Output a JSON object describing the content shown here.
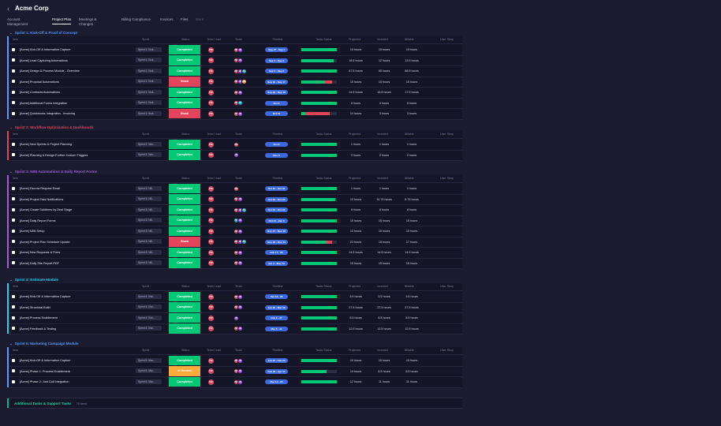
{
  "app": {
    "back_icon": "chevron-left-icon",
    "title": "Acme Corp"
  },
  "nav": [
    {
      "label": "Account Management",
      "label_lines": [
        "Account",
        "Management"
      ],
      "active": false
    },
    {
      "label": "Project Plan",
      "label_lines": [
        "Project Plan"
      ],
      "active": true
    },
    {
      "label": "Meetings & Changes",
      "label_lines": [
        "Meetings &",
        "Changes"
      ],
      "active": false
    },
    {
      "label": "Billing Compliance",
      "label_lines": [
        "Billing Compliance"
      ],
      "active": false
    },
    {
      "label": "Invoices",
      "label_lines": [
        "Invoices"
      ],
      "active": false
    },
    {
      "label": "Files",
      "label_lines": [
        "Files"
      ],
      "active": false
    },
    {
      "label": "More",
      "label_lines": [
        "More"
      ],
      "active": false
    }
  ],
  "columns": [
    "Item",
    "Sprint",
    "Status",
    "Team Lead",
    "Team",
    "Timeline",
    "Tasks Status",
    "Projected",
    "Invested",
    "Billable",
    "User Story"
  ],
  "colors": {
    "completed": "#00c875",
    "stuck": "#e2445c",
    "in_review": "#fdab3d",
    "timeline": "#3c68e0",
    "progress_done": "#00c875",
    "progress_stuck": "#e2445c"
  },
  "groups": [
    {
      "title": "Sprint 1: Kick-Off & Proof of Concept",
      "color": "#579bfc",
      "items": [
        {
          "name": "[Acme] Kick-Off & Information Capture",
          "sprint": "Sprint 1: Kick...",
          "status": "Completed",
          "lead": "PW",
          "team": [
            "PW",
            "JD"
          ],
          "timeline": "Aug 27 - Sep 1",
          "progress": [
            [
              1.0,
              "done"
            ]
          ],
          "projected": "15 hours",
          "invested": "19 hours",
          "billable": "19 hours"
        },
        {
          "name": "[Acme] Lead Capturing Automations",
          "sprint": "Sprint 1: Kick...",
          "status": "Completed",
          "lead": "PW",
          "team": [
            "PW",
            "JD"
          ],
          "timeline": "Sep 1 - Sep 3",
          "progress": [
            [
              0.92,
              "done"
            ]
          ],
          "projected": "18.5 hours",
          "invested": "12 hours",
          "billable": "13.5 hours"
        },
        {
          "name": "[Acme] Design & Process Module - Overview",
          "sprint": "Sprint 1: Kick...",
          "status": "Completed",
          "lead": "PW",
          "team": [
            "PW",
            "JD",
            "TK"
          ],
          "timeline": "Sep 1 - Sep 6",
          "progress": [
            [
              1.0,
              "done"
            ]
          ],
          "projected": "67.5 hours",
          "invested": "60 hours",
          "billable": "88.9 hours"
        },
        {
          "name": "[Acme] Proposal Automations",
          "sprint": "Sprint 1: Kick...",
          "status": "Stuck",
          "lead": "PW",
          "team": [
            "PW",
            "JD",
            "MR"
          ],
          "timeline": "Sep 16 - Sep 17",
          "progress": [
            [
              0.66,
              "done"
            ],
            [
              0.2,
              "stuck"
            ]
          ],
          "projected": "15 hours",
          "invested": "10 hours",
          "billable": "10 hours"
        },
        {
          "name": "[Acme] Contracts Automations",
          "sprint": "Sprint 1: Kick...",
          "status": "Completed",
          "lead": "PW",
          "team": [
            "PW",
            "JD"
          ],
          "timeline": "Sep 18 - Sep 19",
          "progress": [
            [
              1.0,
              "done"
            ]
          ],
          "projected": "14.5 hours",
          "invested": "16.5 hours",
          "billable": "17.5 hours"
        },
        {
          "name": "[Acme] Additional Forms Integration",
          "sprint": "Sprint 1: Kick...",
          "status": "Completed",
          "lead": "PW",
          "team": [
            "PW",
            "TK"
          ],
          "timeline": "Oct 6",
          "progress": [
            [
              1.0,
              "done"
            ]
          ],
          "projected": "6 hours",
          "invested": "4 hours",
          "billable": "6 hours"
        },
        {
          "name": "[Acme] Quickbooks Integration - Invoicing",
          "sprint": "Sprint 1: Kick...",
          "status": "Stuck",
          "lead": "PW",
          "team": [
            "PW",
            "JD"
          ],
          "timeline": "Oct 31",
          "progress": [
            [
              0.1,
              "done"
            ],
            [
              0.7,
              "stuck"
            ]
          ],
          "projected": "14 hours",
          "invested": "3 hours",
          "billable": "3 hours"
        }
      ]
    },
    {
      "title": "Sprint 2: Workflow Optimization & Dashboards",
      "color": "#e2445c",
      "items": [
        {
          "name": "[Acme] Next Sprints & Project Planning",
          "sprint": "Sprint 2: Wor...",
          "status": "Completed",
          "lead": "PW",
          "team": [
            "PW"
          ],
          "timeline": "Oct 8",
          "progress": [
            [
              1.0,
              "done"
            ]
          ],
          "projected": "1 hours",
          "invested": "1 hours",
          "billable": "1 hours"
        },
        {
          "name": "[Acme] Planning & Design Further Custom Triggers",
          "sprint": "Sprint 2: Wor...",
          "status": "Completed",
          "lead": "PW",
          "team": [
            "JD"
          ],
          "timeline": "Nov 5",
          "progress": [
            [
              1.0,
              "done"
            ]
          ],
          "projected": "2 hours",
          "invested": "2 hours",
          "billable": "2 hours"
        }
      ]
    },
    {
      "title": "Sprint 3: N8N Automations & Daily Report Forms",
      "color": "#a25ddc",
      "items": [
        {
          "name": "[Acme] Escrow Request Email",
          "sprint": "Sprint 3: N8...",
          "status": "Completed",
          "lead": "PW",
          "team": [
            "PW"
          ],
          "timeline": "Oct 15 - Oct 31",
          "progress": [
            [
              1.0,
              "done"
            ]
          ],
          "projected": "1 hours",
          "invested": "1 hours",
          "billable": "1 hours"
        },
        {
          "name": "[Acme] Project Task Notifications",
          "sprint": "Sprint 3: N8...",
          "status": "Completed",
          "lead": "PW",
          "team": [
            "PW",
            "JD"
          ],
          "timeline": "Oct 16 - Oct 24",
          "progress": [
            [
              0.96,
              "done"
            ]
          ],
          "projected": "10 hours",
          "invested": "10.75 hours",
          "billable": "8.75 hours"
        },
        {
          "name": "[Acme] Create Subitems by Deal Stage",
          "sprint": "Sprint 3: N8...",
          "status": "Completed",
          "lead": "PW",
          "team": [
            "PW",
            "JD",
            "TK"
          ],
          "timeline": "Oct 22 - Oct 23",
          "progress": [
            [
              1.0,
              "done"
            ]
          ],
          "projected": "8 hours",
          "invested": "8 hours",
          "billable": "8 hours"
        },
        {
          "name": "[Acme] Daily Report Forms",
          "sprint": "Sprint 3: N8...",
          "status": "Completed",
          "lead": "PW",
          "team": [
            "TK",
            "JD"
          ],
          "timeline": "Oct 24 - Jan 8",
          "progress": [
            [
              1.0,
              "done"
            ]
          ],
          "projected": "15 hours",
          "invested": "15 hours",
          "billable": "15 hours"
        },
        {
          "name": "[Acme] N8N Setup",
          "sprint": "Sprint 3: N8...",
          "status": "Completed",
          "lead": "PW",
          "team": [
            "PW",
            "JD"
          ],
          "timeline": "Nov 17 - Nov 20",
          "progress": [
            [
              1.0,
              "done"
            ]
          ],
          "projected": "10 hours",
          "invested": "10 hours",
          "billable": "10 hours"
        },
        {
          "name": "[Acme] Project Plan Schedule Update",
          "sprint": "Sprint 3: N8...",
          "status": "Stuck",
          "lead": "PW",
          "team": [
            "PW",
            "JD",
            "TK"
          ],
          "timeline": "Nov 20 - Dec 24",
          "progress": [
            [
              0.72,
              "done"
            ],
            [
              0.14,
              "stuck"
            ]
          ],
          "projected": "23 hours",
          "invested": "15 hours",
          "billable": "17 hours"
        },
        {
          "name": "[Acme] New Requests & Fixes",
          "sprint": "Sprint 3: N8...",
          "status": "Completed",
          "lead": "PW",
          "team": [
            "PW",
            "JD"
          ],
          "timeline": "Feb 17 - 25",
          "progress": [
            [
              1.0,
              "done"
            ]
          ],
          "projected": "14.5 hours",
          "invested": "14.5 hours",
          "billable": "14.5 hours"
        },
        {
          "name": "[Acme] Daily Site Report PDF",
          "sprint": "Sprint 3: N8...",
          "status": "Completed",
          "lead": "PW",
          "team": [
            "PW",
            "JD"
          ],
          "timeline": "Apr 2 - May 12",
          "progress": [
            [
              1.0,
              "done"
            ]
          ],
          "projected": "15 hours",
          "invested": "15 hours",
          "billable": "15 hours"
        }
      ]
    },
    {
      "title": "Sprint 4: Estimate Module",
      "color": "#22d3ee",
      "items": [
        {
          "name": "[Acme] Kick-Off & Information Capture",
          "sprint": "Sprint 4: Esti...",
          "status": "Completed",
          "lead": "PW",
          "team": [
            "PW",
            "JD"
          ],
          "timeline": "Jan 16 - 25",
          "progress": [
            [
              1.0,
              "done"
            ]
          ],
          "projected": "3.5 hours",
          "invested": "3.5 hours",
          "billable": "3.5 hours"
        },
        {
          "name": "[Acme] Structural Build",
          "sprint": "Sprint 4: Esti...",
          "status": "Completed",
          "lead": "PW",
          "team": [
            "PW",
            "JD"
          ],
          "timeline": "Jan 30 - Mar 19",
          "progress": [
            [
              1.0,
              "done"
            ]
          ],
          "projected": "27.5 hours",
          "invested": "27.5 hours",
          "billable": "27.5 hours"
        },
        {
          "name": "[Acme] Process Enablement",
          "sprint": "Sprint 4: Esti...",
          "status": "Completed",
          "lead": "PW",
          "team": [
            "JD"
          ],
          "timeline": "Feb 2 - 27",
          "progress": [
            [
              1.0,
              "done"
            ]
          ],
          "projected": "8.5 hours",
          "invested": "8.5 hours",
          "billable": "8.5 hours"
        },
        {
          "name": "[Acme] Feedback & Testing",
          "sprint": "Sprint 4: Esti...",
          "status": "Completed",
          "lead": "PW",
          "team": [
            "PW",
            "JD"
          ],
          "timeline": "Mar 5 - 11",
          "progress": [
            [
              1.0,
              "done"
            ]
          ],
          "projected": "12.5 hours",
          "invested": "12.5 hours",
          "billable": "12.5 hours"
        }
      ]
    },
    {
      "title": "Sprint 5: Marketing Campaign Module",
      "color": "#579bfc",
      "items": [
        {
          "name": "[Acme] Kick-Off & Information Capture",
          "sprint": "Sprint 5: Mar...",
          "status": "Completed",
          "lead": "PW",
          "team": [
            "PW",
            "JD"
          ],
          "timeline": "Jan 20 - Feb 26",
          "progress": [
            [
              1.0,
              "done"
            ]
          ],
          "projected": "10 hours",
          "invested": "10 hours",
          "billable": "10 hours"
        },
        {
          "name": "[Acme] Phase 1: Process Enablement",
          "sprint": "Sprint 5: Mar...",
          "status": "In Review",
          "lead": "PW",
          "team": [
            "PW",
            "JD"
          ],
          "timeline": "Feb 25 - Apr 17",
          "progress": [
            [
              0.7,
              "done"
            ]
          ],
          "projected": "19 hours",
          "invested": "8.5 hours",
          "billable": "8.5 hours"
        },
        {
          "name": "[Acme] Phase 2: Just Call Integration",
          "sprint": "Sprint 5: Mar...",
          "status": "Completed",
          "lead": "PW",
          "team": [
            "PW",
            "JD"
          ],
          "timeline": "Mar 12 - 26",
          "progress": [
            [
              1.0,
              "done"
            ]
          ],
          "projected": "12 hours",
          "invested": "11 hours",
          "billable": "11 hours"
        }
      ]
    }
  ],
  "footer_group": {
    "title": "Additional Tasks & Support Tasks",
    "count": "78 Items"
  }
}
